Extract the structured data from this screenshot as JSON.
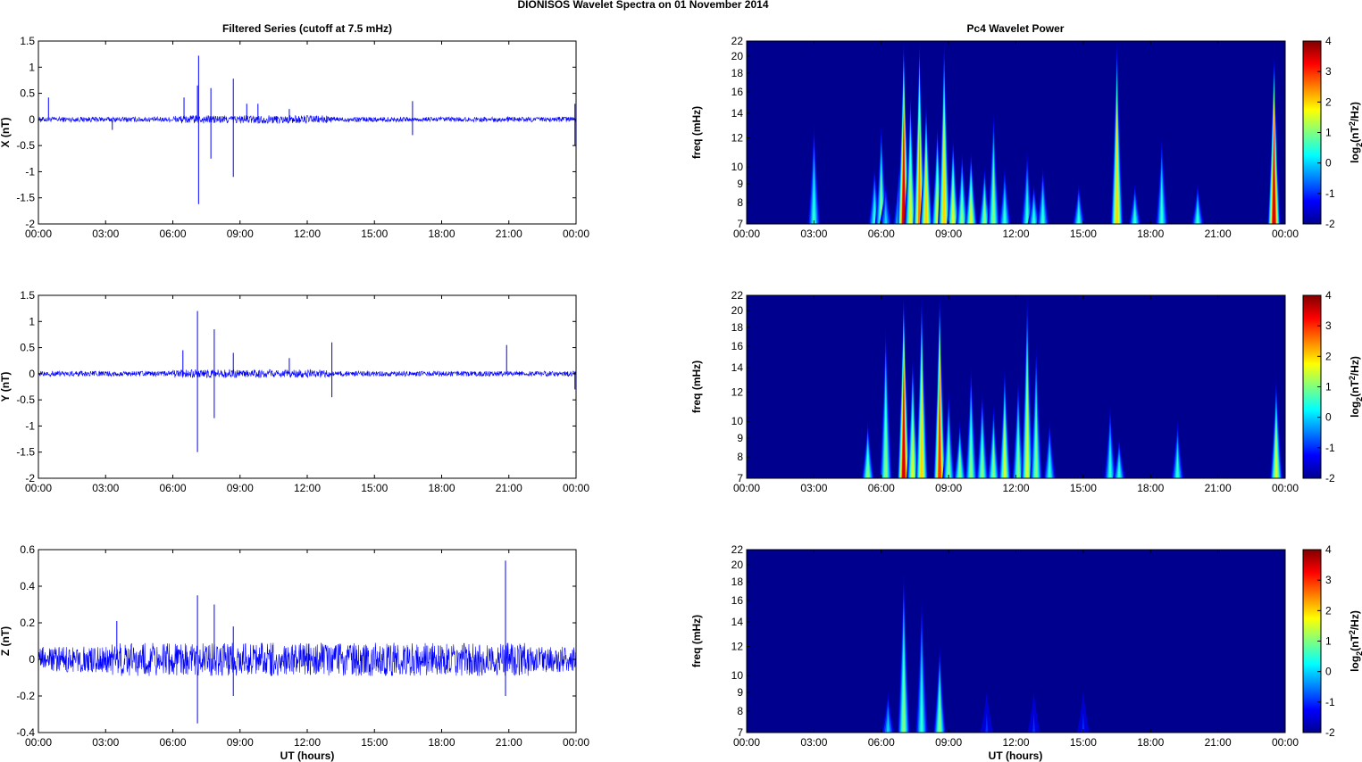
{
  "figure": {
    "suptitle": "DIONISOS Wavelet Spectra on 01 November  2014",
    "left_title": "Filtered Series (cutoff at 7.5 mHz)",
    "right_title": "Pc4 Wavelet Power",
    "xlabel": "UT (hours)"
  },
  "chart_data": [
    {
      "type": "line",
      "ylabel": "X (nT)",
      "xlim": [
        0,
        24
      ],
      "ylim": [
        -2,
        1.5
      ],
      "yticks": [
        -2,
        -1.5,
        -1,
        -0.5,
        0,
        0.5,
        1,
        1.5
      ],
      "xticklabels": [
        "00:00",
        "03:00",
        "06:00",
        "09:00",
        "12:00",
        "15:00",
        "18:00",
        "21:00",
        "00:00"
      ],
      "series_color": "#0000ff",
      "noise_amplitude": 0.05,
      "spikes": [
        [
          0.45,
          0.42
        ],
        [
          3.3,
          -0.2
        ],
        [
          6.5,
          0.42
        ],
        [
          7.15,
          1.22
        ],
        [
          7.15,
          -1.62
        ],
        [
          7.1,
          0.65
        ],
        [
          7.7,
          0.6
        ],
        [
          7.7,
          -0.75
        ],
        [
          8.7,
          0.78
        ],
        [
          8.7,
          -1.1
        ],
        [
          9.3,
          0.3
        ],
        [
          9.8,
          0.3
        ],
        [
          11.2,
          0.2
        ],
        [
          16.7,
          0.35
        ],
        [
          16.7,
          -0.3
        ],
        [
          23.95,
          0.3
        ],
        [
          23.95,
          -0.5
        ]
      ]
    },
    {
      "type": "line",
      "ylabel": "Y (nT)",
      "xlim": [
        0,
        24
      ],
      "ylim": [
        -2,
        1.5
      ],
      "yticks": [
        -2,
        -1.5,
        -1,
        -0.5,
        0,
        0.5,
        1,
        1.5
      ],
      "xticklabels": [
        "00:00",
        "03:00",
        "06:00",
        "09:00",
        "12:00",
        "15:00",
        "18:00",
        "21:00",
        "00:00"
      ],
      "series_color": "#0000ff",
      "noise_amplitude": 0.05,
      "spikes": [
        [
          6.45,
          0.45
        ],
        [
          7.1,
          1.2
        ],
        [
          7.1,
          -1.5
        ],
        [
          7.85,
          0.85
        ],
        [
          7.85,
          -0.85
        ],
        [
          8.7,
          0.4
        ],
        [
          11.2,
          0.3
        ],
        [
          13.1,
          0.6
        ],
        [
          13.1,
          -0.45
        ],
        [
          20.9,
          0.55
        ],
        [
          23.95,
          -0.3
        ]
      ]
    },
    {
      "type": "line",
      "ylabel": "Z (nT)",
      "xlim": [
        0,
        24
      ],
      "ylim": [
        -0.4,
        0.6
      ],
      "yticks": [
        -0.4,
        -0.2,
        0,
        0.2,
        0.4,
        0.6
      ],
      "xticklabels": [
        "00:00",
        "03:00",
        "06:00",
        "09:00",
        "12:00",
        "15:00",
        "18:00",
        "21:00",
        "00:00"
      ],
      "series_color": "#0000ff",
      "noise_amplitude": 0.07,
      "spikes": [
        [
          3.5,
          0.21
        ],
        [
          7.1,
          0.35
        ],
        [
          7.1,
          -0.35
        ],
        [
          7.85,
          0.3
        ],
        [
          8.7,
          0.18
        ],
        [
          8.7,
          -0.2
        ],
        [
          20.85,
          0.54
        ],
        [
          20.85,
          -0.2
        ]
      ]
    },
    {
      "type": "heatmap",
      "ylabel": "freq (mHz)",
      "xlim": [
        0,
        24
      ],
      "ylim": [
        7,
        22
      ],
      "yscale": "log",
      "yticks": [
        7,
        8,
        9,
        10,
        12,
        14,
        16,
        18,
        20,
        22
      ],
      "xticklabels": [
        "00:00",
        "03:00",
        "06:00",
        "09:00",
        "12:00",
        "15:00",
        "18:00",
        "21:00",
        "00:00"
      ],
      "colorbar": {
        "label": "log2(nT2/Hz)",
        "range": [
          -2,
          4
        ],
        "ticks": [
          -2,
          -1,
          0,
          1,
          2,
          3,
          4
        ]
      },
      "background": "#00008f",
      "bursts": [
        [
          3.0,
          0.9,
          13
        ],
        [
          5.7,
          0.5,
          10
        ],
        [
          6.0,
          1.1,
          13
        ],
        [
          6.2,
          0.4,
          9
        ],
        [
          6.8,
          0.6,
          10
        ],
        [
          7.0,
          3.8,
          22
        ],
        [
          7.3,
          1.8,
          16
        ],
        [
          7.7,
          2.6,
          22
        ],
        [
          8.0,
          2.2,
          15
        ],
        [
          8.5,
          1.5,
          13
        ],
        [
          8.8,
          2.4,
          22
        ],
        [
          9.2,
          1.6,
          12
        ],
        [
          9.6,
          1.2,
          11
        ],
        [
          10.0,
          1.8,
          11
        ],
        [
          10.6,
          1.0,
          10
        ],
        [
          11.0,
          1.2,
          14
        ],
        [
          11.5,
          0.8,
          10
        ],
        [
          12.5,
          0.9,
          11
        ],
        [
          12.8,
          0.6,
          9
        ],
        [
          13.2,
          0.7,
          10
        ],
        [
          14.8,
          0.8,
          9
        ],
        [
          16.5,
          2.0,
          22
        ],
        [
          17.3,
          0.5,
          9
        ],
        [
          18.5,
          0.6,
          12
        ],
        [
          20.1,
          0.9,
          9
        ],
        [
          23.5,
          3.6,
          20
        ]
      ]
    },
    {
      "type": "heatmap",
      "ylabel": "freq (mHz)",
      "xlim": [
        0,
        24
      ],
      "ylim": [
        7,
        22
      ],
      "yscale": "log",
      "yticks": [
        7,
        8,
        9,
        10,
        12,
        14,
        16,
        18,
        20,
        22
      ],
      "xticklabels": [
        "00:00",
        "03:00",
        "06:00",
        "09:00",
        "12:00",
        "15:00",
        "18:00",
        "21:00",
        "00:00"
      ],
      "colorbar": {
        "label": "log2(nT2/Hz)",
        "range": [
          -2,
          4
        ],
        "ticks": [
          -2,
          -1,
          0,
          1,
          2,
          3,
          4
        ]
      },
      "background": "#00008f",
      "bursts": [
        [
          5.4,
          1.0,
          10
        ],
        [
          6.2,
          1.4,
          18
        ],
        [
          7.0,
          3.6,
          22
        ],
        [
          7.4,
          1.6,
          15
        ],
        [
          7.8,
          2.2,
          22
        ],
        [
          8.6,
          3.2,
          22
        ],
        [
          9.0,
          1.0,
          12
        ],
        [
          9.5,
          1.0,
          10
        ],
        [
          10.0,
          1.4,
          14
        ],
        [
          10.5,
          1.2,
          12
        ],
        [
          11.0,
          1.4,
          11
        ],
        [
          11.5,
          1.6,
          14
        ],
        [
          12.1,
          1.2,
          13
        ],
        [
          12.5,
          1.8,
          22
        ],
        [
          12.9,
          1.2,
          16
        ],
        [
          13.5,
          0.6,
          10
        ],
        [
          16.2,
          0.9,
          11
        ],
        [
          16.6,
          0.5,
          9
        ],
        [
          19.2,
          0.7,
          10
        ],
        [
          23.6,
          1.6,
          13
        ]
      ]
    },
    {
      "type": "heatmap",
      "ylabel": "freq (mHz)",
      "xlim": [
        0,
        24
      ],
      "ylim": [
        7,
        22
      ],
      "yscale": "log",
      "yticks": [
        7,
        8,
        9,
        10,
        12,
        14,
        16,
        18,
        20,
        22
      ],
      "xticklabels": [
        "00:00",
        "03:00",
        "06:00",
        "09:00",
        "12:00",
        "15:00",
        "18:00",
        "21:00",
        "00:00"
      ],
      "colorbar": {
        "label": "log2(nT2/Hz)",
        "range": [
          -2,
          4
        ],
        "ticks": [
          -2,
          -1,
          0,
          1,
          2,
          3,
          4
        ]
      },
      "background": "#00008f",
      "bursts": [
        [
          6.3,
          0.0,
          9
        ],
        [
          7.0,
          1.3,
          19
        ],
        [
          7.8,
          0.9,
          16
        ],
        [
          8.6,
          1.1,
          12
        ],
        [
          10.7,
          -0.6,
          9
        ],
        [
          12.8,
          -0.8,
          9
        ],
        [
          15.0,
          -0.9,
          9
        ]
      ]
    }
  ]
}
